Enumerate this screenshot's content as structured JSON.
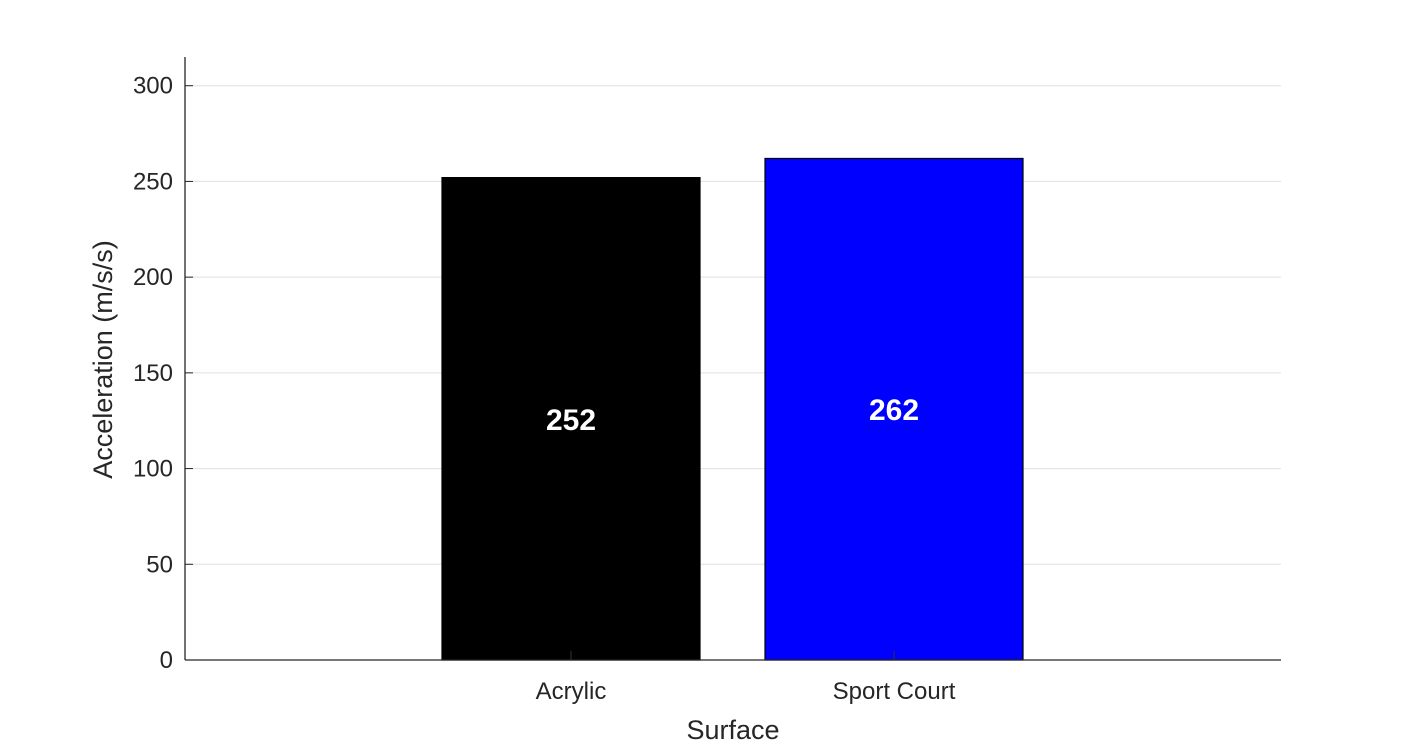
{
  "chart_data": {
    "type": "bar",
    "categories": [
      "Acrylic",
      "Sport Court"
    ],
    "values": [
      252,
      262
    ],
    "data_labels": [
      "252",
      "262"
    ],
    "bar_colors": [
      "#000000",
      "#0000ff"
    ],
    "bar_label_color": "#ffffff",
    "title": "",
    "xlabel": "Surface",
    "ylabel": "Acceleration (m/s/s)",
    "ylim": [
      0,
      315
    ],
    "yticks": [
      0,
      50,
      100,
      150,
      200,
      250,
      300
    ],
    "grid": "horizontal",
    "grid_color": "#e0e0e0",
    "axis_color": "#262626"
  }
}
